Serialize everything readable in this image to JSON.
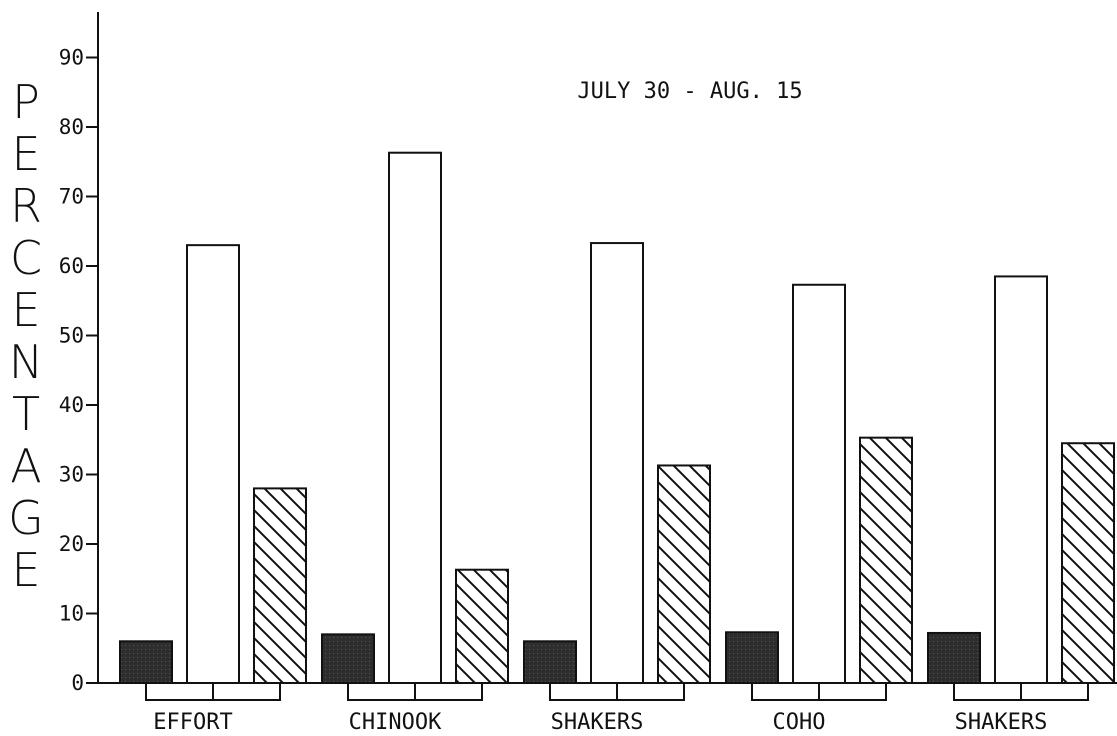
{
  "chart_data": {
    "type": "bar",
    "title": "JULY 30 - AUG. 15",
    "ylabel": "PERCENTAGE",
    "xlabel": "",
    "ylim": [
      0,
      95
    ],
    "yticks": [
      0,
      10,
      20,
      30,
      40,
      50,
      60,
      70,
      80,
      90
    ],
    "ytick_labels": [
      "0",
      "10",
      "20",
      "30",
      "40",
      "50",
      "60",
      "70",
      "80",
      "90"
    ],
    "categories": [
      "EFFORT",
      "CHINOOK",
      "SHAKERS",
      "COHO",
      "SHAKERS"
    ],
    "series": [
      {
        "values": [
          6,
          7,
          6,
          7.3,
          7.2
        ],
        "style": "solid-dark"
      },
      {
        "values": [
          63,
          76.3,
          63.3,
          57.3,
          58.5
        ],
        "style": "open"
      },
      {
        "values": [
          28,
          16.3,
          31.3,
          35.3,
          34.5
        ],
        "style": "diagonal-hatch"
      }
    ],
    "legend": "none",
    "grid": false,
    "colors": {
      "dark": "#2a2a2a",
      "outline": "#111111",
      "background": "#ffffff"
    }
  }
}
